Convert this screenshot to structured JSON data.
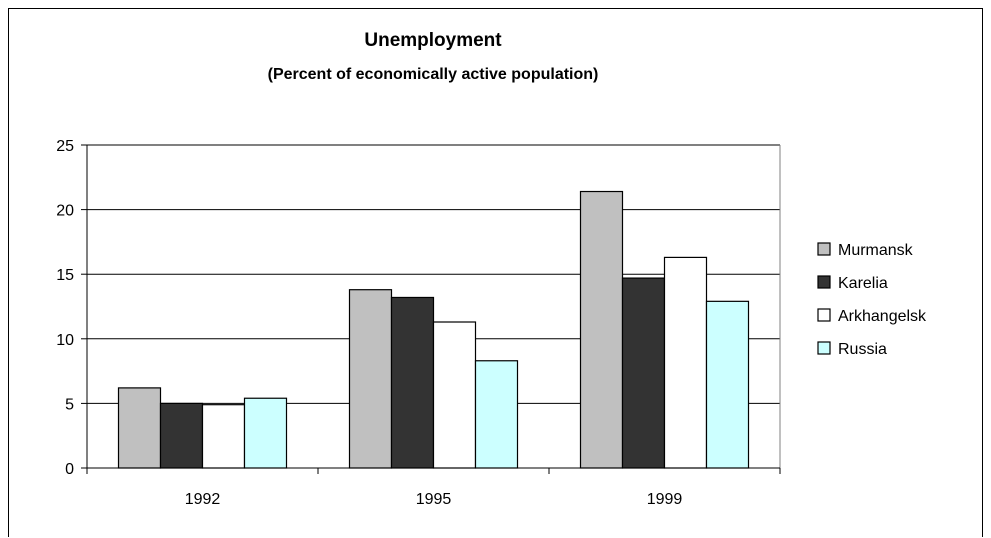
{
  "chart_data": {
    "type": "bar",
    "title": "Unemployment",
    "subtitle": "(Percent of economically active population)",
    "xlabel": "",
    "ylabel": "",
    "categories": [
      "1992",
      "1995",
      "1999"
    ],
    "ylim": [
      0,
      25
    ],
    "yticks": [
      "0",
      "5",
      "10",
      "15",
      "20",
      "25"
    ],
    "grid": true,
    "legend_position": "right",
    "series": [
      {
        "name": "Murmansk",
        "values": [
          6.2,
          13.8,
          21.4
        ],
        "color": "#c0c0c0"
      },
      {
        "name": "Karelia",
        "values": [
          5.0,
          13.2,
          14.7
        ],
        "color": "#333333"
      },
      {
        "name": "Arkhangelsk",
        "values": [
          4.9,
          11.3,
          16.3
        ],
        "color": "#ffffff"
      },
      {
        "name": "Russia",
        "values": [
          5.4,
          8.3,
          12.9
        ],
        "color": "#ccffff"
      }
    ]
  }
}
